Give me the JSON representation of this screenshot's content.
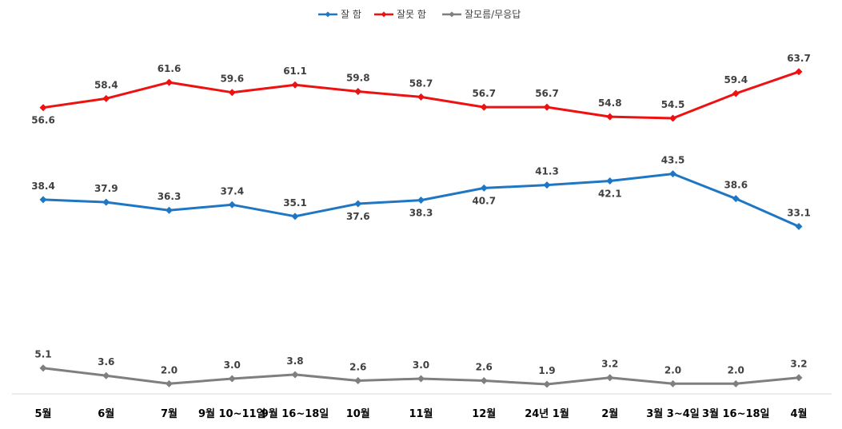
{
  "chart_data": {
    "type": "line",
    "title": "",
    "xlabel": "",
    "ylabel": "",
    "ylim": [
      0,
      70
    ],
    "grid": false,
    "legend_position": "top-center",
    "categories": [
      "5월",
      "6월",
      "7월",
      "9월 10~11일",
      "9월 16~18일",
      "10월",
      "11월",
      "12월",
      "24년 1월",
      "2월",
      "3월 3~4일",
      "3월 16~18일",
      "4월"
    ],
    "series": [
      {
        "name": "잘 함",
        "color": "#1F77C4",
        "values": [
          38.4,
          37.9,
          36.3,
          37.4,
          35.1,
          37.6,
          38.3,
          40.7,
          41.3,
          42.1,
          43.5,
          38.6,
          33.1
        ],
        "label_positions": [
          "above",
          "above",
          "above",
          "above",
          "above",
          "below",
          "below",
          "below",
          "above",
          "below",
          "above",
          "above",
          "above"
        ]
      },
      {
        "name": "잘못 함",
        "color": "#EE1111",
        "values": [
          56.6,
          58.4,
          61.6,
          59.6,
          61.1,
          59.8,
          58.7,
          56.7,
          56.7,
          54.8,
          54.5,
          59.4,
          63.7
        ],
        "label_positions": [
          "below",
          "above",
          "above",
          "above",
          "above",
          "above",
          "above",
          "above",
          "above",
          "above",
          "above",
          "above",
          "above"
        ]
      },
      {
        "name": "잘모름/무응답",
        "color": "#7F7F7F",
        "values": [
          5.1,
          3.6,
          2.0,
          3.0,
          3.8,
          2.6,
          3.0,
          2.6,
          1.9,
          3.2,
          2.0,
          2.0,
          3.2
        ],
        "label_positions": [
          "above",
          "above",
          "above",
          "above",
          "above",
          "above",
          "above",
          "above",
          "above",
          "above",
          "above",
          "above",
          "above"
        ]
      }
    ]
  }
}
